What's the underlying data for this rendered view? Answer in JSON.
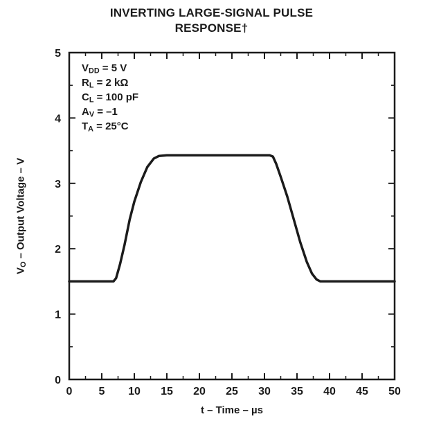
{
  "title": {
    "line1": "INVERTING LARGE-SIGNAL PULSE",
    "line2": "RESPONSE†"
  },
  "chart_data": {
    "type": "line",
    "title": "INVERTING LARGE-SIGNAL PULSE RESPONSE†",
    "xlabel": "t – Time – µs",
    "ylabel_parts": [
      {
        "t": "V"
      },
      {
        "sub": "O"
      },
      {
        "t": " – Output Voltage – V"
      }
    ],
    "xlim": [
      0,
      50
    ],
    "ylim": [
      0,
      5
    ],
    "x_major_ticks": [
      0,
      5,
      10,
      15,
      20,
      25,
      30,
      35,
      40,
      45,
      50
    ],
    "x_minor_step": 2.5,
    "y_major_ticks": [
      0,
      1,
      2,
      3,
      4,
      5
    ],
    "y_minor_step": 0.5,
    "grid": false,
    "legend": "none",
    "line_color": "#1b1b1b",
    "axis_color": "#1b1b1b",
    "series": [
      {
        "name": "Output Voltage",
        "points": [
          [
            0,
            1.5
          ],
          [
            6.8,
            1.5
          ],
          [
            7.2,
            1.55
          ],
          [
            7.8,
            1.76
          ],
          [
            8.5,
            2.06
          ],
          [
            9.3,
            2.45
          ],
          [
            10,
            2.72
          ],
          [
            11,
            3.02
          ],
          [
            12,
            3.25
          ],
          [
            13,
            3.38
          ],
          [
            13.8,
            3.42
          ],
          [
            15,
            3.43
          ],
          [
            30.8,
            3.43
          ],
          [
            31.3,
            3.41
          ],
          [
            31.8,
            3.3
          ],
          [
            32.5,
            3.1
          ],
          [
            33.5,
            2.8
          ],
          [
            34.5,
            2.45
          ],
          [
            35.5,
            2.1
          ],
          [
            36.5,
            1.8
          ],
          [
            37.3,
            1.62
          ],
          [
            38,
            1.53
          ],
          [
            38.6,
            1.5
          ],
          [
            50,
            1.5
          ]
        ]
      }
    ],
    "annotations": [
      [
        {
          "t": "V"
        },
        {
          "sub": "DD"
        },
        {
          "t": " = 5 V"
        }
      ],
      [
        {
          "t": "R"
        },
        {
          "sub": "L"
        },
        {
          "t": " = 2 kΩ"
        }
      ],
      [
        {
          "t": "C"
        },
        {
          "sub": "L"
        },
        {
          "t": " = 100 pF"
        }
      ],
      [
        {
          "t": "A"
        },
        {
          "sub": "V"
        },
        {
          "t": " = –1"
        }
      ],
      [
        {
          "t": "T"
        },
        {
          "sub": "A"
        },
        {
          "t": " = 25°C"
        }
      ]
    ]
  }
}
